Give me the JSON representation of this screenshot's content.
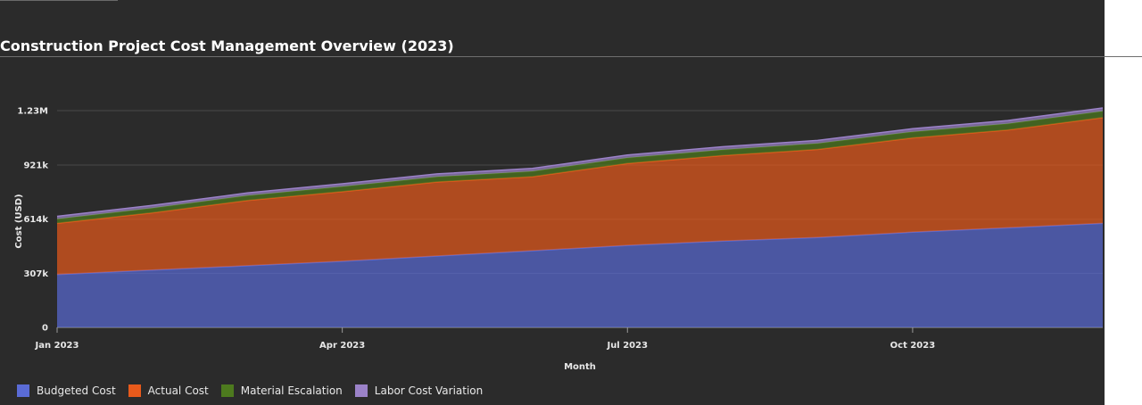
{
  "title": "Construction Project Cost Management Overview (2023)",
  "colors": {
    "background": "#2b2b2b",
    "budgeted": "#5a6bd6",
    "actual": "#e85a1b",
    "material": "#4d7a1e",
    "labor": "#9b82c8"
  },
  "chart_data": {
    "type": "area",
    "stacked": true,
    "xlabel": "Month",
    "ylabel": "Cost (USD)",
    "x": [
      "2023-01",
      "2023-02",
      "2023-03",
      "2023-04",
      "2023-05",
      "2023-06",
      "2023-07",
      "2023-08",
      "2023-09",
      "2023-10",
      "2023-11",
      "2023-12"
    ],
    "x_ticks": [
      {
        "value": "2023-01",
        "label": "Jan 2023"
      },
      {
        "value": "2023-04",
        "label": "Apr 2023"
      },
      {
        "value": "2023-07",
        "label": "Jul 2023"
      },
      {
        "value": "2023-10",
        "label": "Oct 2023"
      }
    ],
    "y_ticks": [
      {
        "value": 0,
        "label": "0"
      },
      {
        "value": 307000,
        "label": "307k"
      },
      {
        "value": 614000,
        "label": "614k"
      },
      {
        "value": 921000,
        "label": "921k"
      },
      {
        "value": 1230000,
        "label": "1.23M"
      }
    ],
    "ylim": [
      0,
      1230000
    ],
    "grid": true,
    "legend_position": "bottom-left",
    "series": [
      {
        "name": "Budgeted Cost",
        "color": "#5a6bd6",
        "values": [
          300000,
          325000,
          350000,
          375000,
          405000,
          435000,
          465000,
          490000,
          510000,
          540000,
          565000,
          590000
        ]
      },
      {
        "name": "Actual Cost",
        "color": "#e85a1b",
        "values": [
          290000,
          325000,
          370000,
          395000,
          420000,
          420000,
          465000,
          485000,
          500000,
          535000,
          555000,
          600000
        ]
      },
      {
        "name": "Material Escalation",
        "color": "#4d7a1e",
        "values": [
          25000,
          27000,
          28000,
          29000,
          30000,
          31000,
          32000,
          33000,
          34000,
          35000,
          36000,
          37000
        ]
      },
      {
        "name": "Labor Cost Variation",
        "color": "#9b82c8",
        "values": [
          15000,
          15000,
          15000,
          16000,
          16000,
          16000,
          16000,
          17000,
          17000,
          17000,
          18000,
          18000
        ]
      }
    ]
  }
}
